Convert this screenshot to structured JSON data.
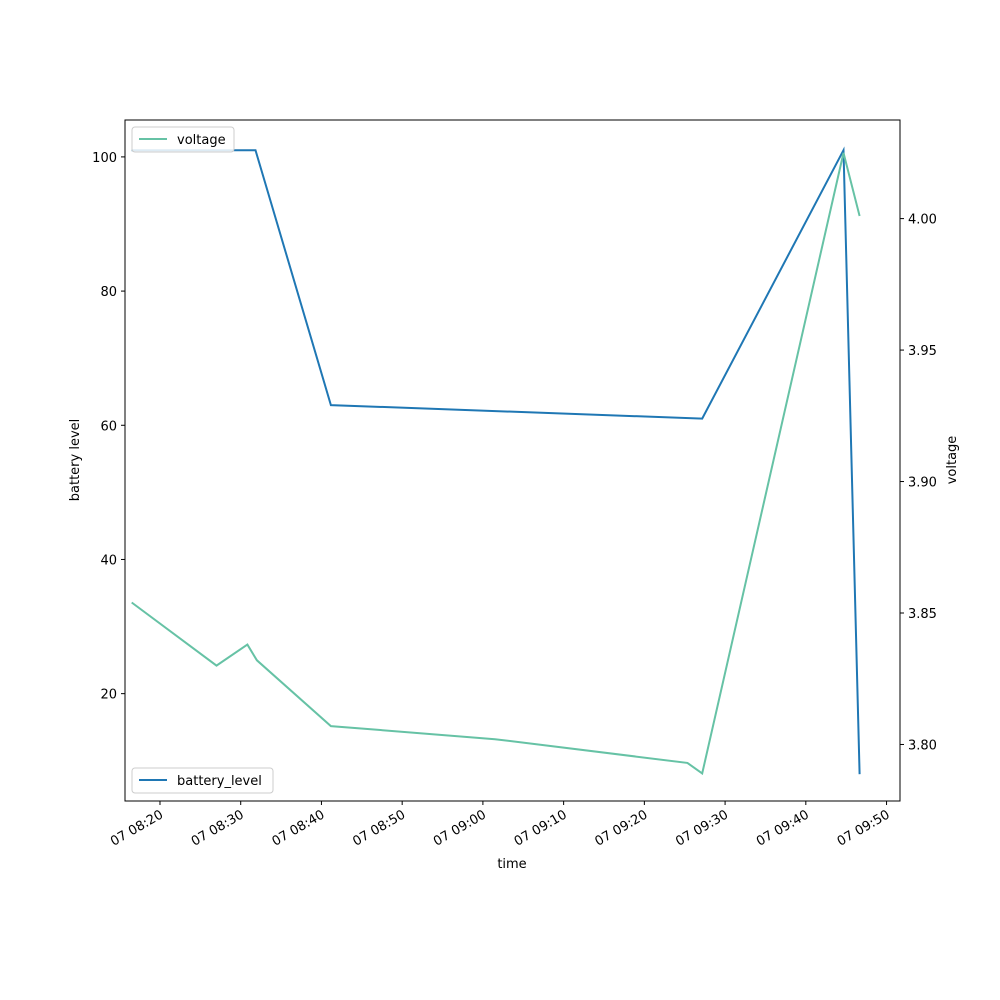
{
  "chart_data": {
    "type": "line",
    "title": "",
    "xlabel": "time",
    "ylabel_left": "battery level",
    "ylabel_right": "voltage",
    "x_ticks": [
      "07 08:20",
      "07 08:30",
      "07 08:40",
      "07 08:50",
      "07 09:00",
      "07 09:10",
      "07 09:20",
      "07 09:30",
      "07 09:40",
      "07 09:50"
    ],
    "y_left_ticks": [
      "20",
      "40",
      "60",
      "80",
      "100"
    ],
    "y_right_ticks": [
      "3.80",
      "3.85",
      "3.90",
      "3.95",
      "4.00"
    ],
    "xlim": [
      "07 08:15:40",
      "07 09:51:40"
    ],
    "ylim_left": [
      4,
      105.5
    ],
    "ylim_right": [
      3.7785,
      4.0375
    ],
    "grid": false,
    "series": [
      {
        "name": "battery_level",
        "axis": "left",
        "color": "#1f77b4",
        "legend_position": "lower-left",
        "points": [
          {
            "x": "07 08:16:30",
            "y": 101
          },
          {
            "x": "07 08:31:50",
            "y": 101
          },
          {
            "x": "07 08:41:10",
            "y": 63
          },
          {
            "x": "07 09:27:10",
            "y": 61
          },
          {
            "x": "07 09:44:40",
            "y": 101
          },
          {
            "x": "07 09:46:40",
            "y": 8
          }
        ]
      },
      {
        "name": "voltage",
        "axis": "right",
        "color": "#66c2a5",
        "legend_position": "upper-left",
        "points": [
          {
            "x": "07 08:16:30",
            "y": 3.854
          },
          {
            "x": "07 08:27:00",
            "y": 3.83
          },
          {
            "x": "07 08:30:50",
            "y": 3.838
          },
          {
            "x": "07 08:32:00",
            "y": 3.832
          },
          {
            "x": "07 08:41:10",
            "y": 3.807
          },
          {
            "x": "07 09:01:30",
            "y": 3.802
          },
          {
            "x": "07 09:25:20",
            "y": 3.793
          },
          {
            "x": "07 09:27:10",
            "y": 3.789
          },
          {
            "x": "07 09:44:40",
            "y": 4.025
          },
          {
            "x": "07 09:46:40",
            "y": 4.001
          }
        ]
      }
    ]
  }
}
